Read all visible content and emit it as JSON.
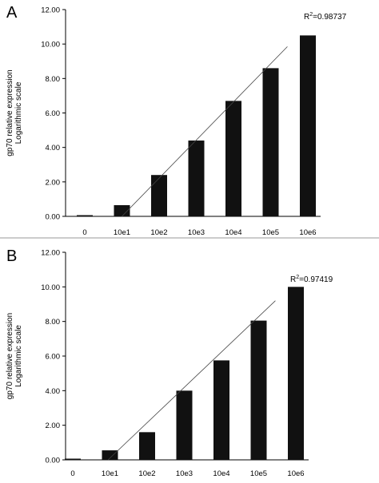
{
  "chart_data": [
    {
      "type": "bar",
      "panel": "A",
      "categories": [
        "0",
        "10e1",
        "10e2",
        "10e3",
        "10e4",
        "10e5",
        "10e6"
      ],
      "values": [
        0.05,
        0.65,
        2.4,
        4.4,
        6.7,
        8.6,
        10.5
      ],
      "ylabel_lines": [
        "gp70 relative expression",
        "Logarithmic scale"
      ],
      "ylim": [
        0,
        12
      ],
      "yticks": [
        "0.00",
        "2.00",
        "4.00",
        "6.00",
        "8.00",
        "10.00",
        "12.00"
      ],
      "r2_label": "R",
      "r2_sup": "2",
      "r2_value": "=0.98737",
      "trendline": {
        "x_start": 1.0,
        "y_start": 0,
        "x_end": 5.45,
        "y_end": 9.85
      },
      "grid": false,
      "legend": "none"
    },
    {
      "type": "bar",
      "panel": "B",
      "categories": [
        "0",
        "10e1",
        "10e2",
        "10e3",
        "10e4",
        "10e5",
        "10e6"
      ],
      "values": [
        0.0,
        0.55,
        1.6,
        4.0,
        5.75,
        8.05,
        10.0
      ],
      "ylabel_lines": [
        "gp70 relative expression",
        "Logarithmic scale"
      ],
      "ylim": [
        0,
        12
      ],
      "yticks": [
        "0.00",
        "2.00",
        "4.00",
        "6.00",
        "8.00",
        "10.00",
        "12.00"
      ],
      "r2_label": "R",
      "r2_sup": "2",
      "r2_value": "=0.97419",
      "trendline": {
        "x_start": 0.95,
        "y_start": 0,
        "x_end": 5.45,
        "y_end": 9.2
      },
      "grid": false,
      "legend": "none"
    }
  ]
}
